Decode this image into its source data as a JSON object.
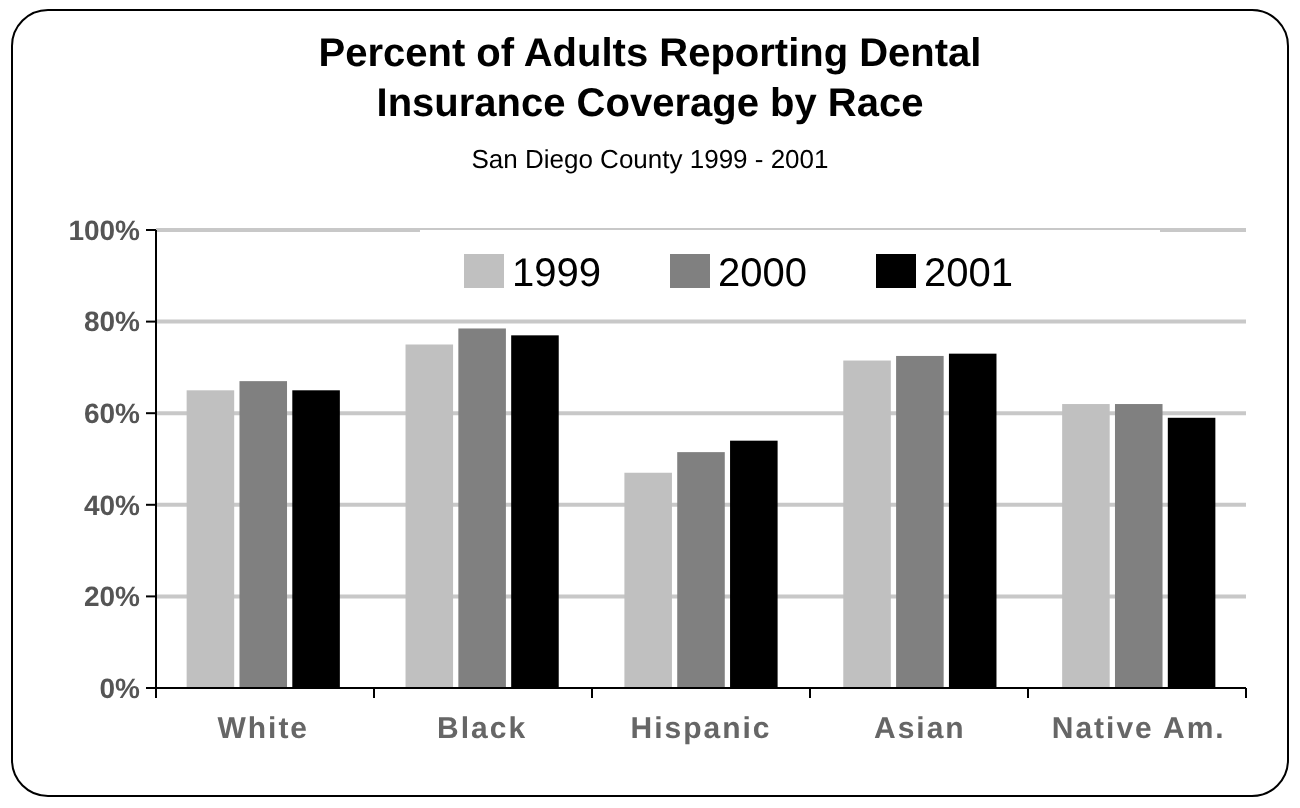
{
  "chart_data": {
    "type": "bar",
    "title": "Percent of Adults Reporting Dental Insurance Coverage by Race",
    "subtitle": "San Diego County 1999 - 2001",
    "categories": [
      "White",
      "Black",
      "Hispanic",
      "Asian",
      "Native Am."
    ],
    "series": [
      {
        "name": "1999",
        "color": "#c0c0c0",
        "values": [
          65,
          75,
          47,
          71.5,
          62
        ]
      },
      {
        "name": "2000",
        "color": "#808080",
        "values": [
          67,
          78.5,
          51.5,
          72.5,
          62
        ]
      },
      {
        "name": "2001",
        "color": "#000000",
        "values": [
          65,
          77,
          54,
          73,
          59
        ]
      }
    ],
    "ylim": [
      0,
      100
    ],
    "yticks": [
      {
        "value": 0,
        "label": "0%"
      },
      {
        "value": 20,
        "label": "20%"
      },
      {
        "value": 40,
        "label": "40%"
      },
      {
        "value": 60,
        "label": "60%"
      },
      {
        "value": 80,
        "label": "80%"
      },
      {
        "value": 100,
        "label": "100%"
      }
    ],
    "grid": "y",
    "legend": "top"
  }
}
